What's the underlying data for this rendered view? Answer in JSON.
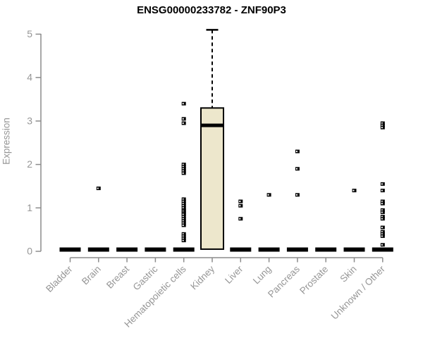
{
  "chart_data": {
    "type": "boxplot",
    "title": "ENSG00000233782 - ZNF90P3",
    "ylabel": "Expression",
    "xlabel": "",
    "ylim": [
      0,
      5
    ],
    "yticks": [
      0,
      1,
      2,
      3,
      4,
      5
    ],
    "grid": false,
    "legend": false,
    "categories": [
      "Bladder",
      "Brain",
      "Breast",
      "Gastric",
      "Hematopoietic cells",
      "Kidney",
      "Liver",
      "Lung",
      "Pancreas",
      "Prostate",
      "Skin",
      "Unknown / Other"
    ],
    "boxes": [
      {
        "category": "Bladder",
        "q1": 0,
        "median": 0,
        "q3": 0,
        "whisker_low": 0,
        "whisker_high": 0,
        "outliers": []
      },
      {
        "category": "Brain",
        "q1": 0,
        "median": 0,
        "q3": 0,
        "whisker_low": 0,
        "whisker_high": 0,
        "outliers": [
          1.45
        ]
      },
      {
        "category": "Breast",
        "q1": 0,
        "median": 0,
        "q3": 0,
        "whisker_low": 0,
        "whisker_high": 0,
        "outliers": []
      },
      {
        "category": "Gastric",
        "q1": 0,
        "median": 0,
        "q3": 0,
        "whisker_low": 0,
        "whisker_high": 0,
        "outliers": []
      },
      {
        "category": "Hematopoietic cells",
        "q1": 0,
        "median": 0,
        "q3": 0,
        "whisker_low": 0,
        "whisker_high": 0,
        "outliers": [
          3.4,
          3.05,
          2.95,
          2.0,
          1.95,
          1.9,
          1.85,
          1.8,
          1.2,
          1.15,
          1.1,
          1.05,
          1.0,
          0.95,
          0.92,
          0.88,
          0.85,
          0.8,
          0.75,
          0.7,
          0.65,
          0.6,
          0.4,
          0.35,
          0.3,
          0.25
        ]
      },
      {
        "category": "Kidney",
        "q1": 0.05,
        "median": 2.9,
        "q3": 3.3,
        "whisker_low": 0,
        "whisker_high": 5.1,
        "outliers": []
      },
      {
        "category": "Liver",
        "q1": 0,
        "median": 0,
        "q3": 0,
        "whisker_low": 0,
        "whisker_high": 0,
        "outliers": [
          1.15,
          1.05,
          0.75
        ]
      },
      {
        "category": "Lung",
        "q1": 0,
        "median": 0,
        "q3": 0,
        "whisker_low": 0,
        "whisker_high": 0,
        "outliers": [
          1.3
        ]
      },
      {
        "category": "Pancreas",
        "q1": 0,
        "median": 0,
        "q3": 0,
        "whisker_low": 0,
        "whisker_high": 0,
        "outliers": [
          2.3,
          1.9,
          1.3
        ]
      },
      {
        "category": "Prostate",
        "q1": 0,
        "median": 0,
        "q3": 0,
        "whisker_low": 0,
        "whisker_high": 0,
        "outliers": []
      },
      {
        "category": "Skin",
        "q1": 0,
        "median": 0,
        "q3": 0,
        "whisker_low": 0,
        "whisker_high": 0,
        "outliers": [
          1.4
        ]
      },
      {
        "category": "Unknown / Other",
        "q1": 0,
        "median": 0,
        "q3": 0,
        "whisker_low": 0,
        "whisker_high": 0,
        "outliers": [
          2.95,
          2.9,
          2.85,
          1.55,
          1.4,
          1.15,
          1.1,
          0.95,
          0.9,
          0.8,
          0.75,
          0.55,
          0.45,
          0.4,
          0.35,
          0.15
        ]
      }
    ],
    "colors": {
      "box_fill": "#ede7cc",
      "box_border": "#000000",
      "median": "#000000",
      "outlier": "#000000",
      "axis": "#8c8c8c",
      "tick_label": "#969696",
      "title": "#000000"
    }
  }
}
